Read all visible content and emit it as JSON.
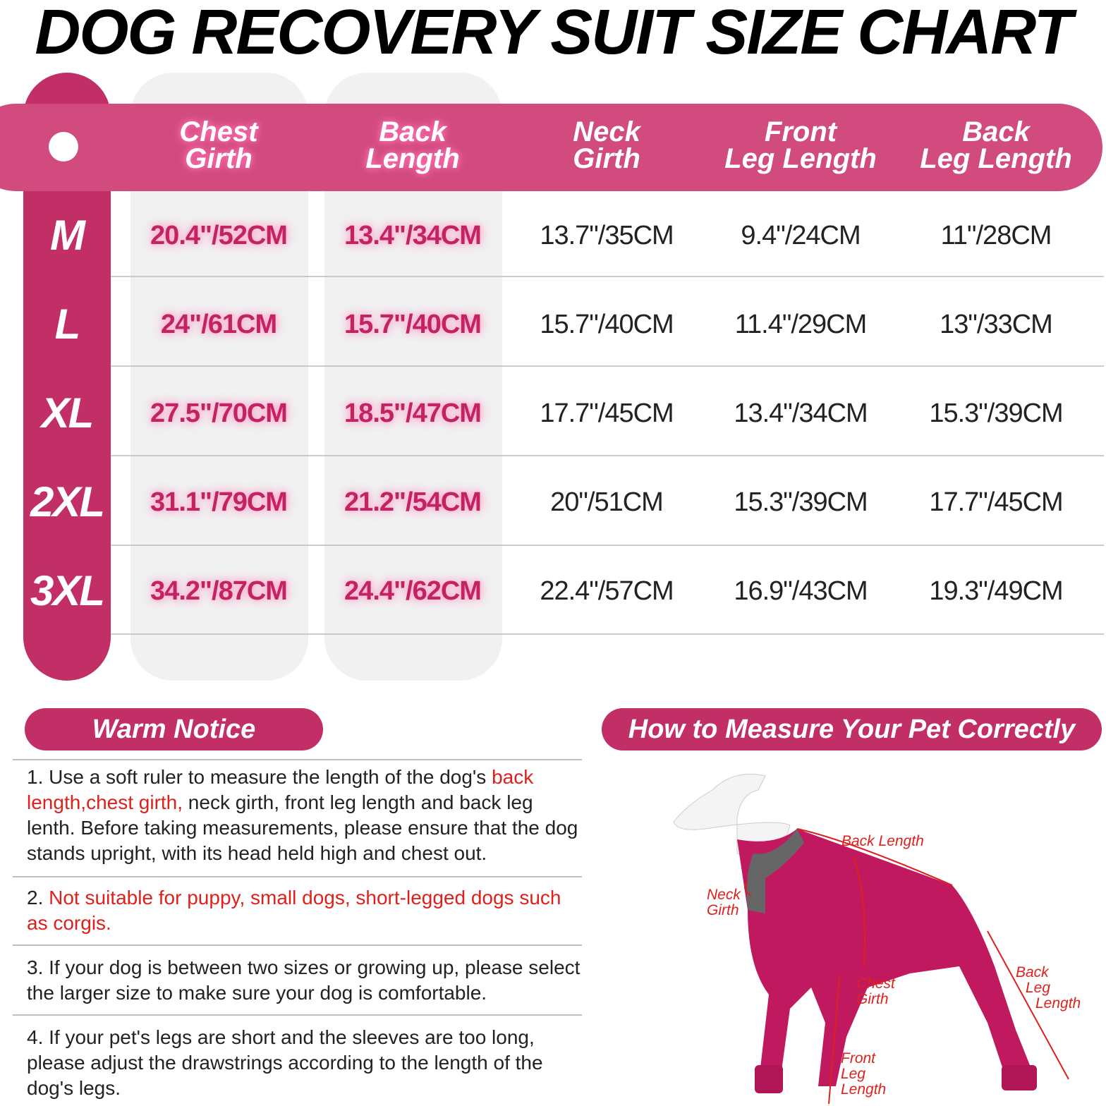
{
  "title": "DOG RECOVERY SUIT SIZE CHART",
  "table": {
    "headers": [
      [
        "Chest",
        "Girth"
      ],
      [
        "Back",
        "Length"
      ],
      [
        "Neck",
        "Girth"
      ],
      [
        "Front",
        "Leg Length"
      ],
      [
        "Back",
        "Leg Length"
      ]
    ],
    "rows": [
      {
        "size": "M",
        "cells": [
          "20.4\"/52CM",
          "13.4\"/34CM",
          "13.7\"/35CM",
          "9.4\"/24CM",
          "11\"/28CM"
        ]
      },
      {
        "size": "L",
        "cells": [
          "24\"/61CM",
          "15.7\"/40CM",
          "15.7\"/40CM",
          "11.4\"/29CM",
          "13\"/33CM"
        ]
      },
      {
        "size": "XL",
        "cells": [
          "27.5\"/70CM",
          "18.5\"/47CM",
          "17.7\"/45CM",
          "13.4\"/34CM",
          "15.3\"/39CM"
        ]
      },
      {
        "size": "2XL",
        "cells": [
          "31.1\"/79CM",
          "21.2\"/54CM",
          "20\"/51CM",
          "15.3\"/39CM",
          "17.7\"/45CM"
        ]
      },
      {
        "size": "3XL",
        "cells": [
          "34.2\"/87CM",
          "24.4\"/62CM",
          "22.4\"/57CM",
          "16.9\"/43CM",
          "19.3\"/49CM"
        ]
      }
    ]
  },
  "notice": {
    "title": "Warm Notice",
    "items": [
      [
        {
          "text": "1. Use a soft ruler to measure the length of the dog's ",
          "color": "#222222"
        },
        {
          "text": "back length,chest girth,",
          "color": "#e0201c"
        },
        {
          "text": " neck girth, front leg length and back leg lenth. Before taking measurements, please ensure that the dog stands upright, with its head held high and chest out.",
          "color": "#222222"
        }
      ],
      [
        {
          "text": "2. ",
          "color": "#222222"
        },
        {
          "text": "Not suitable for puppy, small dogs, short-legged dogs such as corgis.",
          "color": "#e0201c"
        }
      ],
      [
        {
          "text": "3. If your dog is between two sizes or growing up, please select the larger size to make sure your dog is comfortable.",
          "color": "#222222"
        }
      ],
      [
        {
          "text": "4. If your pet's legs are short and the sleeves are too long, please adjust the drawstrings according to the length of the dog's legs.",
          "color": "#222222"
        }
      ]
    ]
  },
  "measure": {
    "title": "How to Measure Your Pet Correctly",
    "labels": [
      {
        "lines": [
          "Back Length"
        ]
      },
      {
        "lines": [
          "Neck",
          "Girth"
        ]
      },
      {
        "lines": [
          "Chest",
          "Girth"
        ]
      },
      {
        "lines": [
          "Back",
          "Leg",
          "Length"
        ]
      },
      {
        "lines": [
          "Front",
          "Leg",
          "Length"
        ]
      }
    ]
  }
}
